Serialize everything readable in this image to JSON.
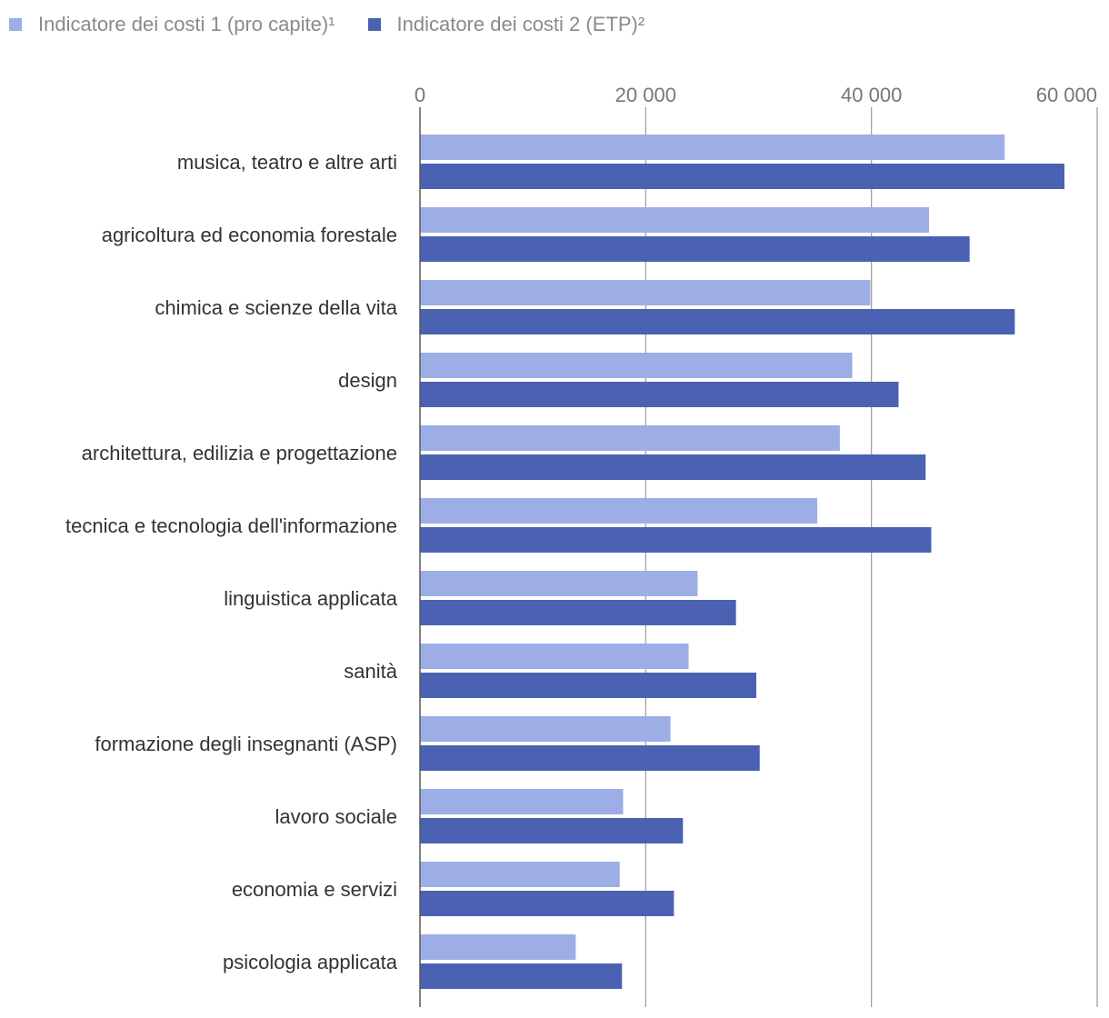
{
  "chart_data": {
    "type": "bar",
    "orientation": "horizontal",
    "title": "",
    "xlabel": "",
    "ylabel": "",
    "xlim": [
      0,
      60000
    ],
    "ticks": [
      0,
      20000,
      40000,
      60000
    ],
    "tick_labels": [
      "0",
      "20 000",
      "40 000",
      "60 000"
    ],
    "grid": true,
    "legend_position": "top-left",
    "categories": [
      "musica, teatro e altre arti",
      "agricoltura ed economia forestale",
      "chimica e scienze della vita",
      "design",
      "architettura, edilizia e progettazione",
      "tecnica e tecnologia dell'informazione",
      "linguistica applicata",
      "sanità",
      "formazione degli insegnanti (ASP)",
      "lavoro sociale",
      "economia e servizi",
      "psicologia applicata"
    ],
    "series": [
      {
        "name": "Indicatore dei costi 1 (pro capite)¹",
        "color": "#9daee6",
        "values": [
          51800,
          45100,
          39900,
          38300,
          37200,
          35200,
          24600,
          23800,
          22200,
          18000,
          17700,
          13800
        ]
      },
      {
        "name": "Indicatore dei costi 2 (ETP)²",
        "color": "#4b62b2",
        "values": [
          57100,
          48700,
          52700,
          42400,
          44800,
          45300,
          28000,
          29800,
          30100,
          23300,
          22500,
          17900
        ]
      }
    ]
  }
}
